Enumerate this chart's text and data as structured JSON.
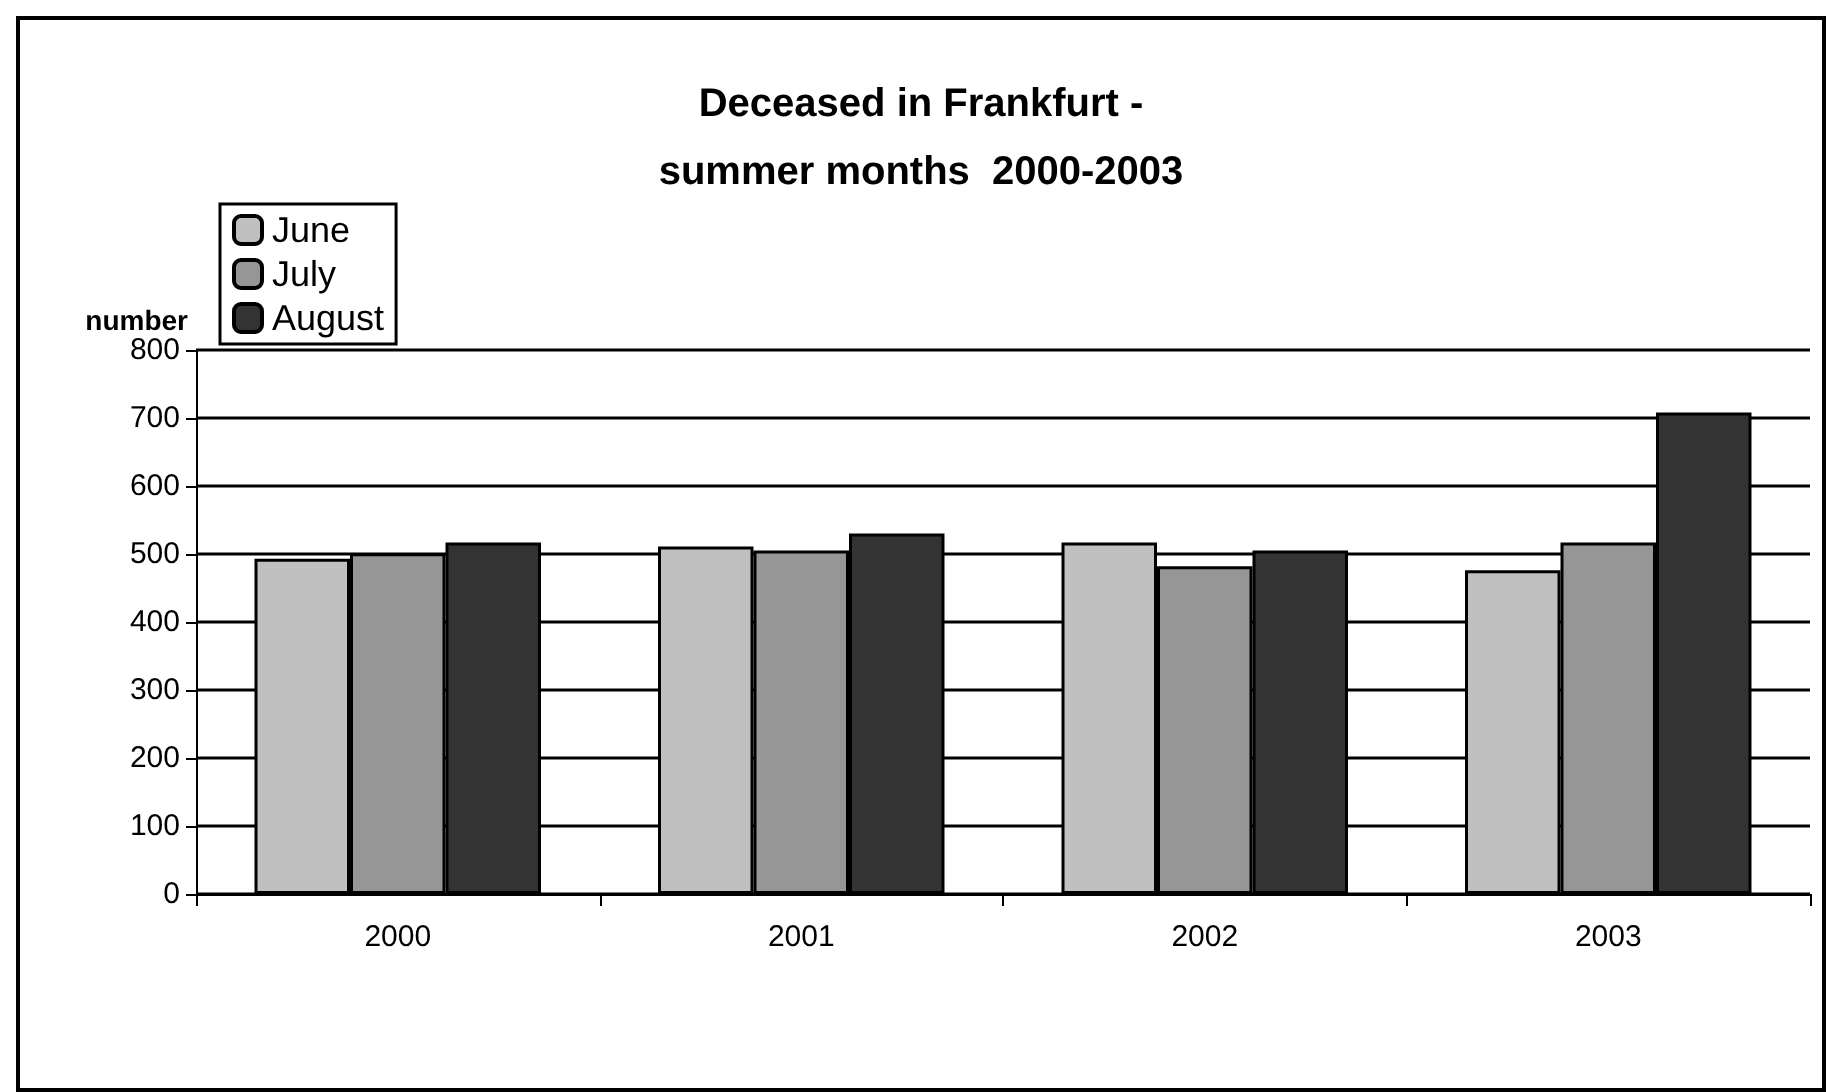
{
  "chart_data": {
    "type": "bar",
    "title": "Deceased in Frankfurt -\nsummer months  2000-2003",
    "ylabel": "number",
    "categories": [
      "2000",
      "2001",
      "2002",
      "2003"
    ],
    "series": [
      {
        "name": "June",
        "color": "#c0c0c0",
        "values": [
          493,
          511,
          517,
          476
        ]
      },
      {
        "name": "July",
        "color": "#969696",
        "values": [
          501,
          505,
          482,
          517
        ]
      },
      {
        "name": "August",
        "color": "#333333",
        "values": [
          517,
          530,
          505,
          708
        ]
      }
    ],
    "ylim": [
      0,
      800
    ],
    "yticks": [
      0,
      100,
      200,
      300,
      400,
      500,
      600,
      700,
      800
    ],
    "grid": "y",
    "legend": "top left"
  }
}
